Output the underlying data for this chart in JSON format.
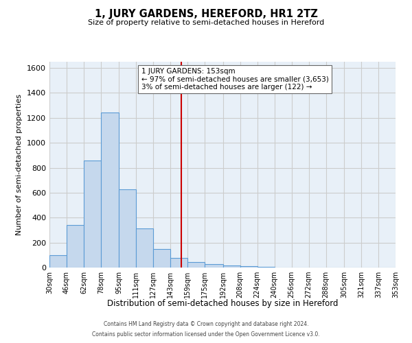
{
  "title": "1, JURY GARDENS, HEREFORD, HR1 2TZ",
  "subtitle": "Size of property relative to semi-detached houses in Hereford",
  "xlabel": "Distribution of semi-detached houses by size in Hereford",
  "ylabel": "Number of semi-detached properties",
  "footer_line1": "Contains HM Land Registry data © Crown copyright and database right 2024.",
  "footer_line2": "Contains public sector information licensed under the Open Government Licence v3.0.",
  "bar_color": "#c5d8ed",
  "bar_edge_color": "#5b9bd5",
  "vline_color": "#cc0000",
  "vline_value": 153,
  "annotation_title": "1 JURY GARDENS: 153sqm",
  "annotation_line2": "← 97% of semi-detached houses are smaller (3,653)",
  "annotation_line3": "3% of semi-detached houses are larger (122) →",
  "bin_edges": [
    30,
    46,
    62,
    78,
    95,
    111,
    127,
    143,
    159,
    175,
    192,
    208,
    224,
    240,
    256,
    272,
    288,
    305,
    321,
    337,
    353
  ],
  "bin_labels": [
    "30sqm",
    "46sqm",
    "62sqm",
    "78sqm",
    "95sqm",
    "111sqm",
    "127sqm",
    "143sqm",
    "159sqm",
    "175sqm",
    "192sqm",
    "208sqm",
    "224sqm",
    "240sqm",
    "256sqm",
    "272sqm",
    "288sqm",
    "305sqm",
    "321sqm",
    "337sqm",
    "353sqm"
  ],
  "counts": [
    100,
    340,
    860,
    1245,
    625,
    315,
    150,
    75,
    45,
    25,
    15,
    10,
    5,
    2,
    1,
    0,
    1,
    0,
    1,
    0
  ],
  "ylim": [
    0,
    1650
  ],
  "yticks": [
    0,
    200,
    400,
    600,
    800,
    1000,
    1200,
    1400,
    1600
  ],
  "background_color": "#ffffff",
  "grid_color": "#cccccc",
  "axes_bg_color": "#e8f0f8"
}
